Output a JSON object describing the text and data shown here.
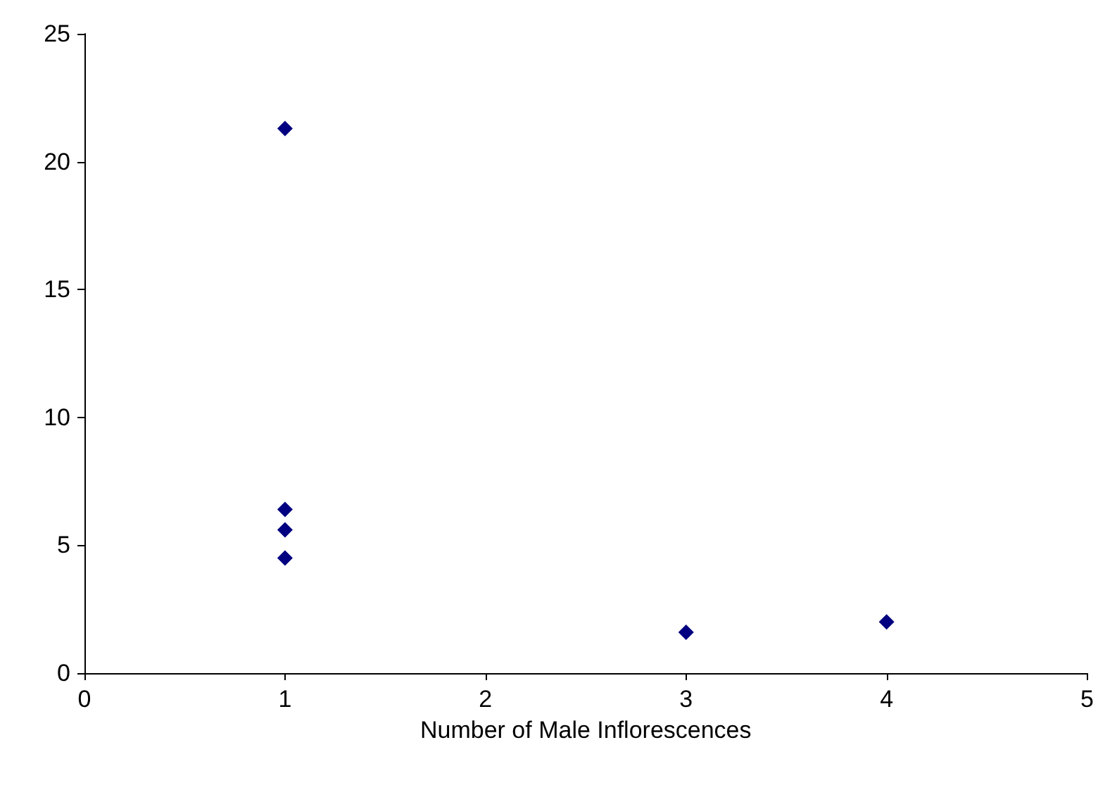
{
  "chart_data": {
    "type": "scatter",
    "xlabel": "Number of Male Inflorescences",
    "x": [
      1,
      1,
      1,
      1,
      3,
      4
    ],
    "values": [
      21.3,
      6.4,
      5.6,
      4.5,
      1.6,
      2.0
    ],
    "color": "#000080",
    "marker": "diamond",
    "xlim": [
      0,
      5
    ],
    "xticks": [
      0,
      1,
      2,
      3,
      4,
      5
    ],
    "ylim": [
      0,
      25
    ],
    "yticks": [
      0,
      5,
      10,
      15,
      20,
      25
    ],
    "grid": false
  }
}
